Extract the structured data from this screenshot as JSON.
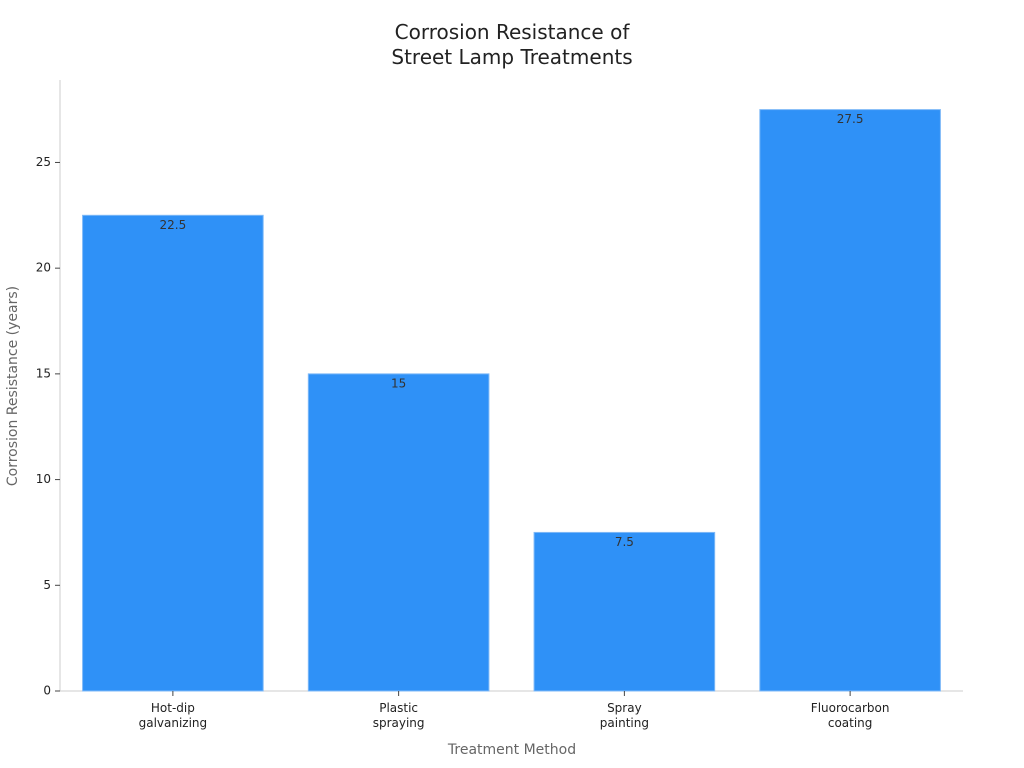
{
  "chart_data": {
    "type": "bar",
    "title": "Corrosion Resistance of\nStreet Lamp Treatments",
    "x_label": "Treatment Method",
    "y_label": "Corrosion Resistance (years)",
    "categories": [
      "Hot-dip\ngalvanizing",
      "Plastic\nspraying",
      "Spray\npainting",
      "Fluorocarbon\ncoating"
    ],
    "values": [
      22.5,
      15,
      7.5,
      27.5
    ],
    "color": "#2f91f7",
    "ylim": [
      0,
      28.9
    ],
    "yticks": [
      0,
      5,
      10,
      15,
      20,
      25
    ],
    "grid": false
  }
}
